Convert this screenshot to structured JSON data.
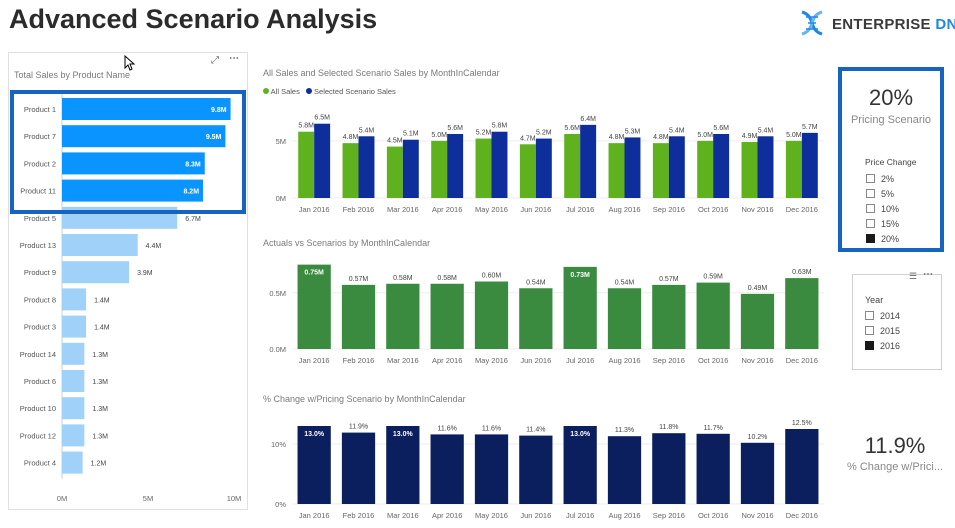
{
  "page": {
    "title": "Advanced Scenario Analysis",
    "brand_main": "ENTERPRISE",
    "brand_accent": "DNA",
    "colors": {
      "brand_blue": "#1e88e5",
      "highlight": "#1565c0"
    }
  },
  "bar_chart": {
    "title": "Total Sales by Product Name",
    "icons": [
      "focus-mode-icon",
      "more-options-icon"
    ],
    "axis_ticks": [
      "0M",
      "5M",
      "10M"
    ],
    "colors": {
      "selected": "#0a94ff",
      "unselected": "#9fd1f9"
    },
    "chart_data": {
      "type": "bar",
      "orientation": "horizontal",
      "categories": [
        "Product 1",
        "Product 7",
        "Product 2",
        "Product 11",
        "Product 5",
        "Product 13",
        "Product 9",
        "Product 8",
        "Product 3",
        "Product 14",
        "Product 6",
        "Product 10",
        "Product 12",
        "Product 4"
      ],
      "values": [
        9.8,
        9.5,
        8.3,
        8.2,
        6.7,
        4.4,
        3.9,
        1.4,
        1.4,
        1.3,
        1.3,
        1.3,
        1.3,
        1.2
      ],
      "labels": [
        "9.8M",
        "9.5M",
        "8.3M",
        "8.2M",
        "6.7M",
        "4.4M",
        "3.9M",
        "1.4M",
        "1.4M",
        "1.3M",
        "1.3M",
        "1.3M",
        "1.3M",
        "1.2M"
      ],
      "selected": [
        true,
        true,
        true,
        true,
        false,
        false,
        false,
        false,
        false,
        false,
        false,
        false,
        false,
        false
      ],
      "xlim": [
        0,
        10
      ]
    }
  },
  "months": [
    "Jan 2016",
    "Feb 2016",
    "Mar 2016",
    "Apr 2016",
    "May 2016",
    "Jun 2016",
    "Jul 2016",
    "Aug 2016",
    "Sep 2016",
    "Oct 2016",
    "Nov 2016",
    "Dec 2016"
  ],
  "sales_chart": {
    "title": "All Sales and Selected Scenario Sales by MonthInCalendar",
    "legend": [
      "All Sales",
      "Selected Scenario Sales"
    ],
    "y_ticks": [
      "5M",
      "0M"
    ],
    "colors": [
      "#5fb21e",
      "#0d2e9b"
    ],
    "chart_data": {
      "type": "bar",
      "categories": [
        "Jan 2016",
        "Feb 2016",
        "Mar 2016",
        "Apr 2016",
        "May 2016",
        "Jun 2016",
        "Jul 2016",
        "Aug 2016",
        "Sep 2016",
        "Oct 2016",
        "Nov 2016",
        "Dec 2016"
      ],
      "series": [
        {
          "name": "All Sales",
          "values": [
            5.8,
            4.8,
            4.5,
            5.0,
            5.2,
            4.7,
            5.6,
            4.8,
            4.8,
            5.0,
            4.9,
            5.0
          ],
          "labels": [
            "5.8M",
            "4.8M",
            "4.5M",
            "5.0M",
            "5.2M",
            "4.7M",
            "5.6M",
            "4.8M",
            "4.8M",
            "5.0M",
            "4.9M",
            "5.0M"
          ]
        },
        {
          "name": "Selected Scenario Sales",
          "values": [
            6.5,
            5.4,
            5.1,
            5.6,
            5.8,
            5.2,
            6.4,
            5.3,
            5.4,
            5.6,
            5.4,
            5.7
          ],
          "labels": [
            "6.5M",
            "5.4M",
            "5.1M",
            "5.6M",
            "5.8M",
            "5.2M",
            "6.4M",
            "5.3M",
            "5.4M",
            "5.6M",
            "5.4M",
            "5.7M"
          ]
        }
      ],
      "ylim": [
        0,
        7
      ]
    }
  },
  "actuals_chart": {
    "title": "Actuals vs Scenarios by MonthInCalendar",
    "y_ticks": [
      "0.5M",
      "0.0M"
    ],
    "color": "#3a8a3f",
    "chart_data": {
      "type": "bar",
      "categories": [
        "Jan 2016",
        "Feb 2016",
        "Mar 2016",
        "Apr 2016",
        "May 2016",
        "Jun 2016",
        "Jul 2016",
        "Aug 2016",
        "Sep 2016",
        "Oct 2016",
        "Nov 2016",
        "Dec 2016"
      ],
      "values": [
        0.75,
        0.57,
        0.58,
        0.58,
        0.6,
        0.54,
        0.73,
        0.54,
        0.57,
        0.59,
        0.49,
        0.63
      ],
      "labels": [
        "0.75M",
        "0.57M",
        "0.58M",
        "0.58M",
        "0.60M",
        "0.54M",
        "0.73M",
        "0.54M",
        "0.57M",
        "0.59M",
        "0.49M",
        "0.63M"
      ],
      "label_inside": [
        true,
        false,
        false,
        false,
        false,
        false,
        true,
        false,
        false,
        false,
        false,
        false
      ],
      "ylim": [
        0,
        0.8
      ]
    }
  },
  "pct_chart": {
    "title": "% Change w/Pricing Scenario by MonthInCalendar",
    "y_ticks": [
      "10%",
      "0%"
    ],
    "color": "#0b1f5e",
    "chart_data": {
      "type": "bar",
      "categories": [
        "Jan 2016",
        "Feb 2016",
        "Mar 2016",
        "Apr 2016",
        "May 2016",
        "Jun 2016",
        "Jul 2016",
        "Aug 2016",
        "Sep 2016",
        "Oct 2016",
        "Nov 2016",
        "Dec 2016"
      ],
      "values": [
        13.0,
        11.9,
        13.0,
        11.6,
        11.6,
        11.4,
        13.0,
        11.3,
        11.8,
        11.7,
        10.2,
        12.5
      ],
      "labels": [
        "13.0%",
        "11.9%",
        "13.0%",
        "11.6%",
        "11.6%",
        "11.4%",
        "13.0%",
        "11.3%",
        "11.8%",
        "11.7%",
        "10.2%",
        "12.5%"
      ],
      "label_inside": [
        true,
        false,
        true,
        false,
        false,
        false,
        true,
        false,
        false,
        false,
        false,
        false
      ],
      "ylim": [
        0,
        14
      ]
    }
  },
  "pricing_card": {
    "value": "20%",
    "caption": "Pricing Scenario",
    "slicer_title": "Price Change",
    "options": [
      "2%",
      "5%",
      "10%",
      "15%",
      "20%"
    ],
    "selected": "20%"
  },
  "year_slicer": {
    "title": "Year",
    "options": [
      "2014",
      "2015",
      "2016"
    ],
    "selected": "2016"
  },
  "change_card": {
    "value": "11.9%",
    "caption": "% Change w/Prici..."
  }
}
